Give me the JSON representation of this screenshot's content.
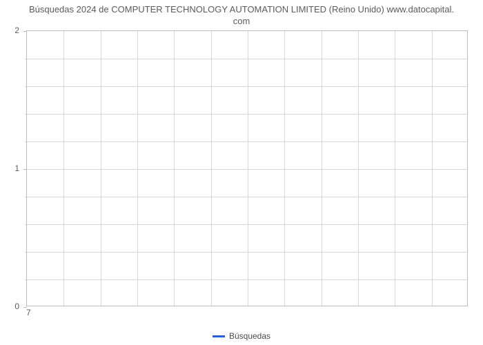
{
  "chart": {
    "type": "line",
    "title_line1": "Búsquedas 2024 de COMPUTER TECHNOLOGY AUTOMATION LIMITED (Reino Unido) www.datocapital.",
    "title_line2": "com",
    "title_fontsize": 13,
    "title_color": "#5a5a5a",
    "background_color": "#ffffff",
    "plot_border_color": "#bcbcbc",
    "grid_color": "#d6d6d6",
    "y_axis": {
      "min": 0,
      "max": 2,
      "major_ticks": [
        0,
        1,
        2
      ],
      "minor_tick_count_between": 4,
      "label_fontsize": 12,
      "label_color": "#5a5a5a"
    },
    "x_axis": {
      "ticks": [
        7
      ],
      "grid_divisions": 12,
      "label_fontsize": 12,
      "label_color": "#5a5a5a"
    },
    "series": [
      {
        "name": "Búsquedas",
        "color": "#2b5cd9",
        "line_width": 3,
        "data": []
      }
    ],
    "legend": {
      "position": "bottom-center",
      "label": "Búsquedas",
      "swatch_color": "#2b5cd9",
      "fontsize": 12,
      "text_color": "#4a4a4a"
    }
  }
}
